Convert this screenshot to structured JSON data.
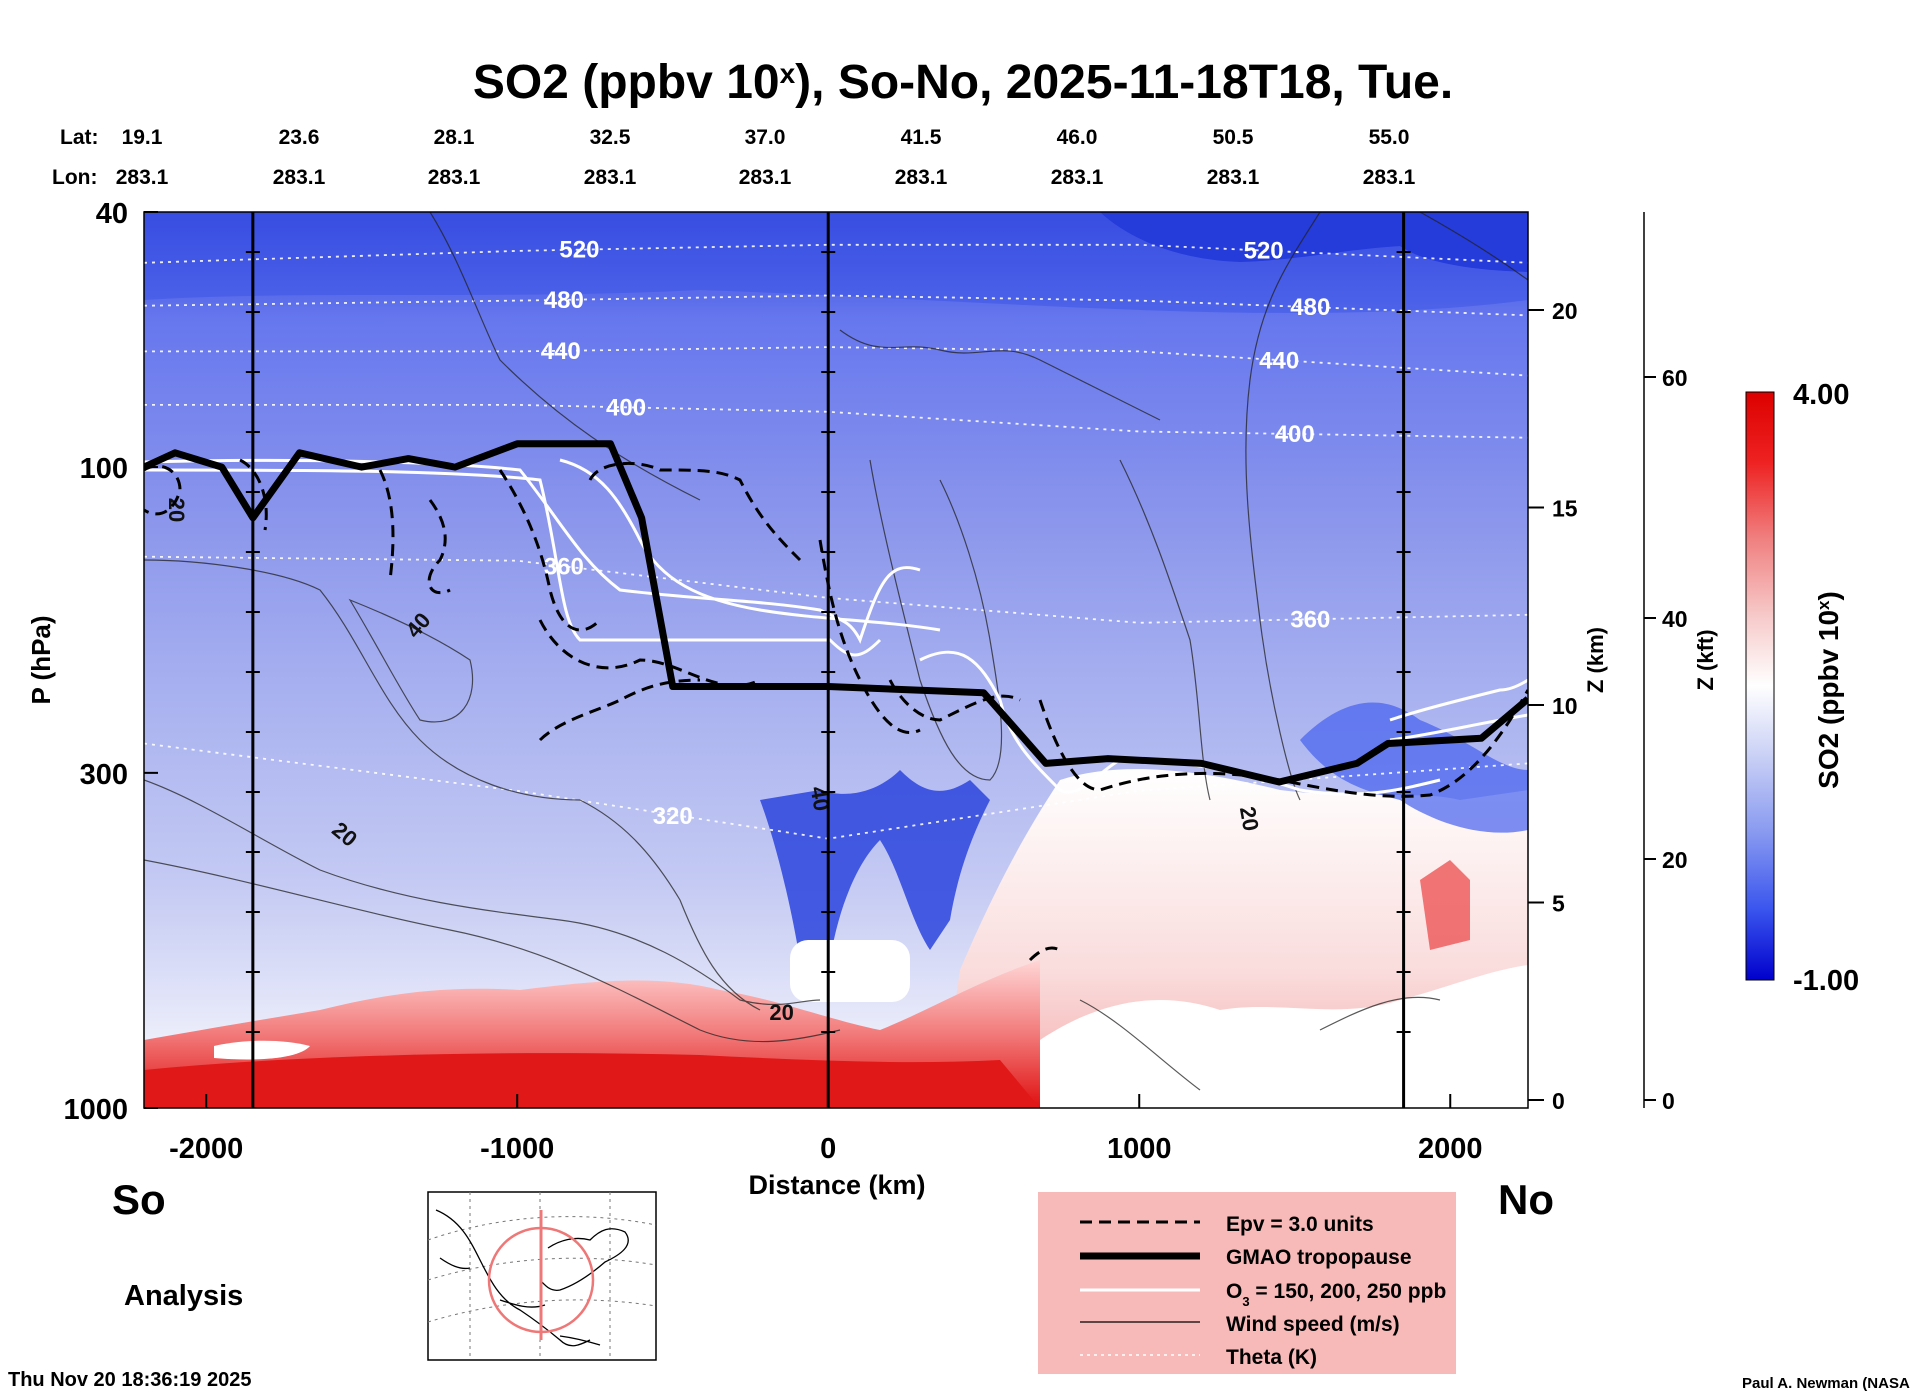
{
  "chart_data": {
    "type": "heatmap",
    "title": "SO2 (ppbv 10^x), So-No, 2025-11-18T18, Tue.",
    "title_parts": {
      "prefix": "SO2 (ppbv 10",
      "sup": "x",
      "suffix": "), So-No, 2025-11-18T18, Tue."
    },
    "lat_label": "Lat:",
    "lon_label": "Lon:",
    "lat_values": [
      "19.1",
      "23.6",
      "28.1",
      "32.5",
      "37.0",
      "41.5",
      "46.0",
      "50.5",
      "55.0"
    ],
    "lon_values": [
      "283.1",
      "283.1",
      "283.1",
      "283.1",
      "283.1",
      "283.1",
      "283.1",
      "283.1",
      "283.1"
    ],
    "xlabel": "Distance (km)",
    "xlim": [
      -2200,
      2250
    ],
    "xticks": [
      -2000,
      -1000,
      0,
      1000,
      2000
    ],
    "xtick_labels": [
      "-2000",
      "-1000",
      "0",
      "1000",
      "2000"
    ],
    "ylabel": "P (hPa)",
    "ylim": [
      1000,
      40
    ],
    "yscale": "log",
    "yticks": [
      40,
      100,
      300,
      1000
    ],
    "ytick_labels": [
      "40",
      "100",
      "300",
      "1000"
    ],
    "z_km_label": "Z (km)",
    "z_km_ticks": [
      0,
      5,
      10,
      15,
      20
    ],
    "z_km_tick_labels": [
      "0",
      "5",
      "10",
      "15",
      "20"
    ],
    "z_kft_label": "Z (kft)",
    "z_kft_ticks": [
      0,
      20,
      40,
      60
    ],
    "z_kft_tick_labels": [
      "0",
      "20",
      "40",
      "60"
    ],
    "colorbar": {
      "label_prefix": "SO2 (ppbv 10",
      "label_sup": "x",
      "label_suffix": ")",
      "min": -1.0,
      "max": 4.0,
      "min_label": "-1.00",
      "max_label": "4.00",
      "colors": [
        "#0000cc",
        "#3a55ee",
        "#8899f0",
        "#c9d0f5",
        "#ffffff",
        "#f7c9c9",
        "#f08080",
        "#ee2222",
        "#dd0000"
      ]
    },
    "vertical_marker_lines_km": [
      -1850,
      0,
      1850
    ],
    "theta_contours": [
      {
        "value": 520,
        "label": "520",
        "points": [
          [
            -2200,
            48
          ],
          [
            -1000,
            46
          ],
          [
            0,
            45
          ],
          [
            1000,
            45
          ],
          [
            2250,
            48
          ]
        ]
      },
      {
        "value": 480,
        "label": "480",
        "points": [
          [
            -2200,
            56
          ],
          [
            -1000,
            55
          ],
          [
            0,
            54
          ],
          [
            1000,
            55
          ],
          [
            2250,
            58
          ]
        ]
      },
      {
        "value": 440,
        "label": "440",
        "points": [
          [
            -2200,
            66
          ],
          [
            -1000,
            66
          ],
          [
            0,
            65
          ],
          [
            1000,
            66
          ],
          [
            2250,
            72
          ]
        ]
      },
      {
        "value": 400,
        "label": "400",
        "points": [
          [
            -2200,
            80
          ],
          [
            -1000,
            80
          ],
          [
            0,
            82
          ],
          [
            1000,
            88
          ],
          [
            2250,
            90
          ]
        ]
      },
      {
        "value": 360,
        "label": "360",
        "points": [
          [
            -2200,
            138
          ],
          [
            -1000,
            140
          ],
          [
            0,
            160
          ],
          [
            1000,
            175
          ],
          [
            2250,
            170
          ]
        ]
      },
      {
        "value": 320,
        "label": "320",
        "points": [
          [
            -2200,
            270
          ],
          [
            -1000,
            320
          ],
          [
            0,
            380
          ],
          [
            1000,
            320
          ],
          [
            2250,
            290
          ]
        ]
      }
    ],
    "tropopause_km_hPa": [
      [
        -2200,
        100
      ],
      [
        -2100,
        95
      ],
      [
        -1950,
        100
      ],
      [
        -1850,
        120
      ],
      [
        -1700,
        95
      ],
      [
        -1500,
        100
      ],
      [
        -1350,
        97
      ],
      [
        -1200,
        100
      ],
      [
        -1000,
        92
      ],
      [
        -700,
        92
      ],
      [
        -600,
        120
      ],
      [
        -500,
        220
      ],
      [
        0,
        220
      ],
      [
        500,
        225
      ],
      [
        700,
        290
      ],
      [
        900,
        285
      ],
      [
        1200,
        290
      ],
      [
        1450,
        310
      ],
      [
        1700,
        290
      ],
      [
        1800,
        270
      ],
      [
        2100,
        265
      ],
      [
        2250,
        230
      ]
    ],
    "wind_speed_labels": [
      "20",
      "40",
      "20",
      "40",
      "20",
      "20"
    ],
    "legend": {
      "items": [
        {
          "label": "Epv = 3.0 units",
          "style": "dashed"
        },
        {
          "label": "GMAO tropopause",
          "style": "thick"
        },
        {
          "label_prefix": "O",
          "label_sub": "3",
          "label_suffix": " = 150, 200, 250 ppb",
          "style": "white"
        },
        {
          "label": "Wind speed (m/s)",
          "style": "thin"
        },
        {
          "label": "Theta (K)",
          "style": "dotted"
        }
      ],
      "placement": "bottom-center"
    }
  },
  "footer": {
    "so": "So",
    "no": "No",
    "analysis": "Analysis",
    "timestamp": "Thu Nov 20 18:36:19 2025",
    "credit": "Paul A. Newman (NASA"
  }
}
